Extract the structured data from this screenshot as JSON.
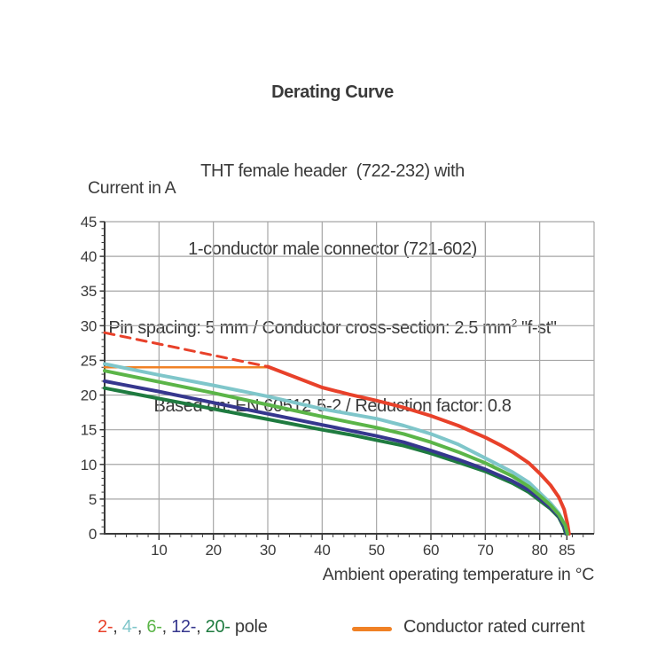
{
  "header": {
    "title": "Derating Curve",
    "line2": "THT female header  (722-232) with",
    "line3": "1-conductor male connector (721-602)",
    "line4_prefix": "Pin spacing: 5 mm / Conductor cross-section: 2.5 mm",
    "line4_sup": "2",
    "line4_suffix": " \"f-st\"",
    "line5": "Based on: EN 60512-5-2 / Reduction factor: 0.8"
  },
  "chart_data": {
    "type": "line",
    "title": "Derating Curve",
    "xlabel": "Ambient operating temperature in °C",
    "ylabel": "Current in A",
    "xlim": [
      0,
      90
    ],
    "ylim": [
      0,
      45
    ],
    "x_grid_step": 10,
    "y_grid_step": 5,
    "x_minor_step": 2,
    "y_minor_step": 1,
    "x_tick_labels": [
      10,
      20,
      30,
      40,
      50,
      60,
      70,
      80,
      85
    ],
    "y_tick_labels": [
      0,
      5,
      10,
      15,
      20,
      25,
      30,
      35,
      40,
      45
    ],
    "grid_color": "#a6a6a6",
    "axis_color": "#3a3a3a",
    "series": [
      {
        "name": "conductor-rated-current",
        "color": "#f08125",
        "width": 2.5,
        "dash": null,
        "points": [
          [
            0,
            24
          ],
          [
            30.5,
            24
          ]
        ]
      },
      {
        "name": "2-pole-extrapolated",
        "color": "#e8412a",
        "width": 3,
        "dash": "11,7.5",
        "points": [
          [
            0,
            29
          ],
          [
            30,
            24.1
          ]
        ]
      },
      {
        "name": "2-pole",
        "color": "#e8412a",
        "width": 4,
        "dash": null,
        "points": [
          [
            30,
            24.1
          ],
          [
            35,
            22.6
          ],
          [
            40,
            21.1
          ],
          [
            45,
            20.1
          ],
          [
            50,
            19.2
          ],
          [
            55,
            18.2
          ],
          [
            60,
            17.0
          ],
          [
            65,
            15.6
          ],
          [
            70,
            13.9
          ],
          [
            73,
            12.7
          ],
          [
            75,
            11.8
          ],
          [
            78,
            10.2
          ],
          [
            80,
            8.7
          ],
          [
            82,
            7.0
          ],
          [
            83.5,
            5.3
          ],
          [
            84.5,
            3.5
          ],
          [
            85.1,
            1.5
          ],
          [
            85.4,
            0
          ]
        ]
      },
      {
        "name": "4-pole",
        "color": "#7fc6ca",
        "width": 4,
        "dash": null,
        "points": [
          [
            0,
            24.5
          ],
          [
            10,
            22.9
          ],
          [
            20,
            21.4
          ],
          [
            30,
            19.8
          ],
          [
            40,
            18.0
          ],
          [
            45,
            17.3
          ],
          [
            50,
            16.6
          ],
          [
            55,
            15.6
          ],
          [
            60,
            14.4
          ],
          [
            65,
            12.9
          ],
          [
            70,
            10.9
          ],
          [
            75,
            8.9
          ],
          [
            78,
            7.4
          ],
          [
            80,
            5.9
          ],
          [
            82,
            4.4
          ],
          [
            83.5,
            3.0
          ],
          [
            84.6,
            1.3
          ],
          [
            85,
            0
          ]
        ]
      },
      {
        "name": "20-pole",
        "color": "#1f7b40",
        "width": 4,
        "dash": null,
        "points": [
          [
            0,
            21.0
          ],
          [
            10,
            19.5
          ],
          [
            20,
            18.0
          ],
          [
            30,
            16.5
          ],
          [
            40,
            15.0
          ],
          [
            45,
            14.3
          ],
          [
            50,
            13.5
          ],
          [
            55,
            12.7
          ],
          [
            60,
            11.6
          ],
          [
            65,
            10.3
          ],
          [
            70,
            9.0
          ],
          [
            75,
            7.3
          ],
          [
            78,
            6.0
          ],
          [
            80,
            4.8
          ],
          [
            82,
            3.6
          ],
          [
            83.5,
            2.4
          ],
          [
            84.4,
            1.0
          ],
          [
            84.8,
            0
          ]
        ]
      },
      {
        "name": "12-pole",
        "color": "#36378e",
        "width": 4,
        "dash": null,
        "points": [
          [
            0,
            22.0
          ],
          [
            10,
            20.5
          ],
          [
            20,
            18.9
          ],
          [
            30,
            17.3
          ],
          [
            40,
            15.7
          ],
          [
            45,
            14.9
          ],
          [
            50,
            14.1
          ],
          [
            55,
            13.2
          ],
          [
            60,
            12.0
          ],
          [
            65,
            10.7
          ],
          [
            70,
            9.3
          ],
          [
            75,
            7.6
          ],
          [
            78,
            6.3
          ],
          [
            80,
            5.1
          ],
          [
            82,
            3.8
          ],
          [
            83.5,
            2.6
          ],
          [
            84.5,
            1.1
          ],
          [
            84.9,
            0
          ]
        ]
      },
      {
        "name": "6-pole",
        "color": "#5bb548",
        "width": 4,
        "dash": null,
        "points": [
          [
            0,
            23.5
          ],
          [
            10,
            21.9
          ],
          [
            20,
            20.3
          ],
          [
            30,
            18.6
          ],
          [
            40,
            16.9
          ],
          [
            45,
            16.1
          ],
          [
            50,
            15.3
          ],
          [
            55,
            14.4
          ],
          [
            60,
            13.2
          ],
          [
            65,
            11.8
          ],
          [
            70,
            10.2
          ],
          [
            75,
            8.3
          ],
          [
            78,
            6.8
          ],
          [
            80,
            5.5
          ],
          [
            82,
            4.1
          ],
          [
            83.5,
            2.8
          ],
          [
            84.7,
            1.2
          ],
          [
            85.1,
            0
          ]
        ]
      }
    ]
  },
  "legend": {
    "pole_items": [
      {
        "label": "2-",
        "color": "#e8412a"
      },
      {
        "label": "4-",
        "color": "#7fc6ca"
      },
      {
        "label": "6-",
        "color": "#5bb548"
      },
      {
        "label": "12-",
        "color": "#36378e"
      },
      {
        "label": "20-",
        "color": "#1f7b40"
      }
    ],
    "separator": ", ",
    "suffix": " pole",
    "rated_label": "Conductor rated current",
    "rated_color": "#f08125"
  }
}
